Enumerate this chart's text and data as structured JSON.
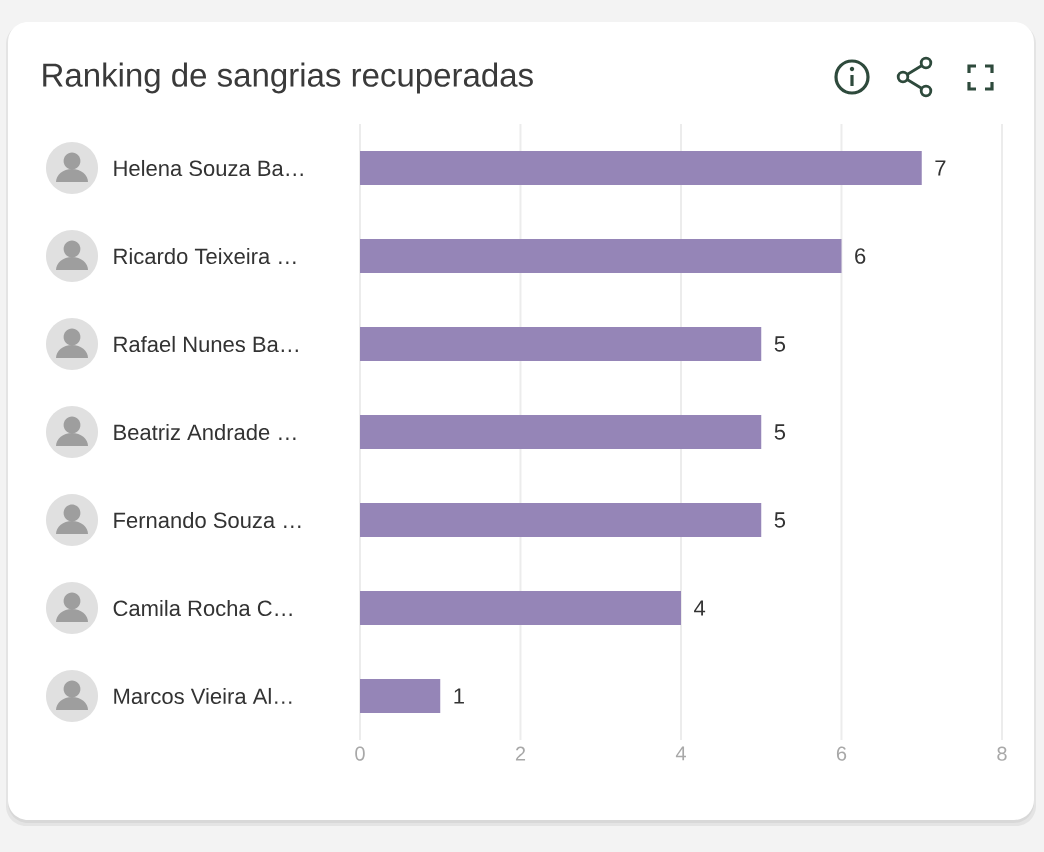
{
  "chart_data": {
    "type": "bar",
    "orientation": "horizontal",
    "title": "Ranking de sangrias recuperadas",
    "categories": [
      "Helena Souza Ba…",
      "Ricardo Teixeira …",
      "Rafael Nunes Ba…",
      "Beatriz Andrade …",
      "Fernando Souza …",
      "Camila Rocha C…",
      "Marcos Vieira Al…"
    ],
    "values": [
      7,
      6,
      5,
      5,
      5,
      4,
      1
    ],
    "color": "#9585b7",
    "xlim": [
      0,
      8
    ],
    "xticks": [
      0,
      2,
      4,
      6,
      8
    ],
    "grid": "x",
    "data_labels": true
  }
}
